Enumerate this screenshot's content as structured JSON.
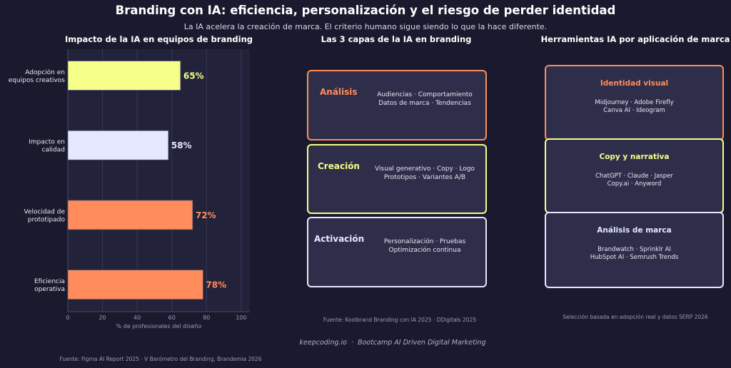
{
  "title": "Branding con IA: eficiencia, personalización y el riesgo de perder identidad",
  "subtitle": "La IA acelera la creación de marca. El criterio humano sigue siendo lo que la hace diferente.",
  "chart_data": {
    "type": "bar",
    "orientation": "horizontal",
    "title": "Impacto de la IA en equipos de branding",
    "categories": [
      "Adopción en\nequipos creativos",
      "Impacto en\ncalidad",
      "Velocidad de\nprototipado",
      "Eficiencia\noperativa"
    ],
    "values": [
      65,
      58,
      72,
      78
    ],
    "value_labels": [
      "65%",
      "58%",
      "72%",
      "78%"
    ],
    "colors": [
      "#f5ff8a",
      "#e6e8ff",
      "#ff8c5a",
      "#ff8c5a"
    ],
    "label_colors": [
      "#f5ff8a",
      "#e6e8ff",
      "#ff8c5a",
      "#ff8c5a"
    ],
    "xlabel": "% de profesionales del diseño",
    "ylabel": "",
    "xlim": [
      0,
      105
    ],
    "xticks": [
      0,
      20,
      40,
      60,
      80,
      100
    ],
    "grid": true
  },
  "left_source": "Fuente: Figma AI Report 2025 · V Barómetro del Branding, Brandemia 2026",
  "layers": {
    "title": "Las 3 capas de la IA en branding",
    "items": [
      {
        "name": "Análisis",
        "line1": "Audiencias · Comportamiento",
        "line2": "Datos de marca · Tendencias",
        "color": "#ff8c5a"
      },
      {
        "name": "Creación",
        "line1": "Visual generativo · Copy · Logo",
        "line2": "Prototipos · Variantes A/B",
        "color": "#f5ff8a"
      },
      {
        "name": "Activación",
        "line1": "Personalización · Pruebas",
        "line2": "Optimización continua",
        "color": "#e6e8ff"
      }
    ],
    "source": "Fuente: Koolbrand Branding con IA 2025 · DDigitals 2025"
  },
  "tools": {
    "title": "Herramientas IA por aplicación de marca",
    "items": [
      {
        "name": "Identidad visual",
        "line1": "Midjourney · Adobe Firefly",
        "line2": "Canva AI · Ideogram",
        "color": "#ff8c5a"
      },
      {
        "name": "Copy y narrativa",
        "line1": "ChatGPT · Claude · Jasper",
        "line2": "Copy.ai · Anyword",
        "color": "#f5ff8a"
      },
      {
        "name": "Análisis de marca",
        "line1": "Brandwatch · Sprinklr AI",
        "line2": "HubSpot AI · Semrush Trends",
        "color": "#e6e8ff"
      }
    ],
    "source": "Selección basada en adopción real y datos SERP 2026"
  },
  "footer": "keepcoding.io  ·  Bootcamp AI Driven Digital Marketing"
}
